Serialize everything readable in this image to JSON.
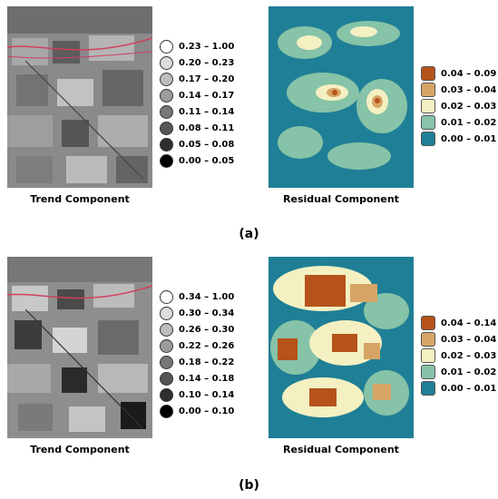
{
  "panels": [
    {
      "label": "(a)",
      "trend": {
        "caption": "Trend Component",
        "legend": [
          {
            "range": "0.23 – 1.00",
            "color": "#ffffff"
          },
          {
            "range": "0.20 – 0.23",
            "color": "#dcdcdc"
          },
          {
            "range": "0.17 – 0.20",
            "color": "#bdbdbd"
          },
          {
            "range": "0.14 – 0.17",
            "color": "#9b9b9b"
          },
          {
            "range": "0.11 – 0.14",
            "color": "#777777"
          },
          {
            "range": "0.08 – 0.11",
            "color": "#555555"
          },
          {
            "range": "0.05 – 0.08",
            "color": "#2e2e2e"
          },
          {
            "range": "0.00 – 0.05",
            "color": "#000000"
          }
        ]
      },
      "residual": {
        "caption": "Residual Component",
        "legend": [
          {
            "range": "0.04 – 0.09",
            "color": "#b5531a"
          },
          {
            "range": "0.03 – 0.04",
            "color": "#d6a566"
          },
          {
            "range": "0.02 – 0.03",
            "color": "#f4f0c2"
          },
          {
            "range": "0.01 – 0.02",
            "color": "#86c3a8"
          },
          {
            "range": "0.00 – 0.01",
            "color": "#1f7f96"
          }
        ]
      }
    },
    {
      "label": "(b)",
      "trend": {
        "caption": "Trend Component",
        "legend": [
          {
            "range": "0.34 – 1.00",
            "color": "#ffffff"
          },
          {
            "range": "0.30 – 0.34",
            "color": "#dcdcdc"
          },
          {
            "range": "0.26 – 0.30",
            "color": "#bdbdbd"
          },
          {
            "range": "0.22 – 0.26",
            "color": "#9b9b9b"
          },
          {
            "range": "0.18 – 0.22",
            "color": "#777777"
          },
          {
            "range": "0.14 – 0.18",
            "color": "#555555"
          },
          {
            "range": "0.10 – 0.14",
            "color": "#2e2e2e"
          },
          {
            "range": "0.00 – 0.10",
            "color": "#000000"
          }
        ]
      },
      "residual": {
        "caption": "Residual Component",
        "legend": [
          {
            "range": "0.04 – 0.14",
            "color": "#b5531a"
          },
          {
            "range": "0.03 – 0.04",
            "color": "#d6a566"
          },
          {
            "range": "0.02 – 0.03",
            "color": "#f4f0c2"
          },
          {
            "range": "0.01 – 0.02",
            "color": "#86c3a8"
          },
          {
            "range": "0.00 – 0.01",
            "color": "#1f7f96"
          }
        ]
      }
    }
  ]
}
